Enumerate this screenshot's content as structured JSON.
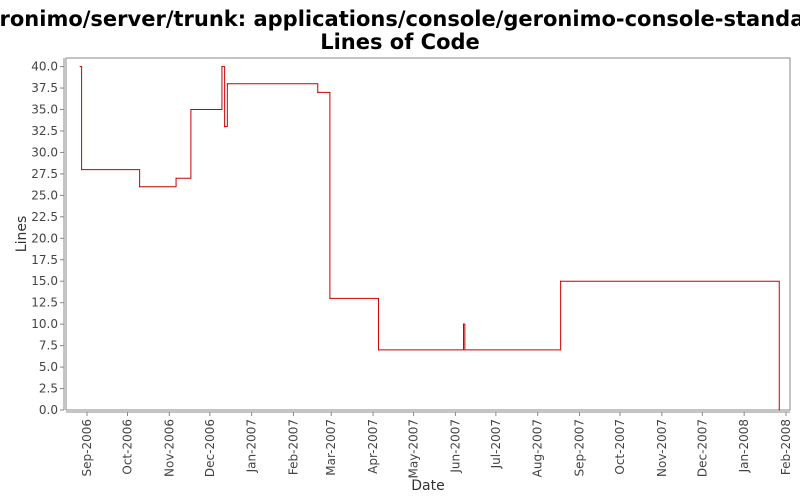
{
  "title_line1": "/geronimo/server/trunk: applications/console/geronimo-console-standard/",
  "title_line2": "Lines of Code",
  "chart_data": {
    "type": "line",
    "xlabel": "Date",
    "ylabel": "Lines",
    "ylim": [
      0,
      41
    ],
    "x_ticks": [
      "Sep-2006",
      "Oct-2006",
      "Nov-2006",
      "Dec-2006",
      "Jan-2007",
      "Feb-2007",
      "Mar-2007",
      "Apr-2007",
      "May-2007",
      "Jun-2007",
      "Jul-2007",
      "Aug-2007",
      "Sep-2007",
      "Oct-2007",
      "Nov-2007",
      "Dec-2007",
      "Jan-2008",
      "Feb-2008"
    ],
    "y_ticks": [
      "0.0",
      "2.5",
      "5.0",
      "7.5",
      "10.0",
      "12.5",
      "15.0",
      "17.5",
      "20.0",
      "22.5",
      "25.0",
      "27.5",
      "30.0",
      "32.5",
      "35.0",
      "37.5",
      "40.0"
    ],
    "grid": false,
    "series_color": "#cc0000",
    "series": [
      {
        "step": true,
        "points": [
          {
            "x": "2006-08-27",
            "y": 40
          },
          {
            "x": "2006-08-28",
            "y": 28
          },
          {
            "x": "2006-10-10",
            "y": 26
          },
          {
            "x": "2006-11-06",
            "y": 27
          },
          {
            "x": "2006-11-17",
            "y": 35
          },
          {
            "x": "2006-12-10",
            "y": 40
          },
          {
            "x": "2006-12-12",
            "y": 33
          },
          {
            "x": "2006-12-14",
            "y": 38
          },
          {
            "x": "2007-02-19",
            "y": 37
          },
          {
            "x": "2007-02-28",
            "y": 13
          },
          {
            "x": "2007-04-05",
            "y": 7
          },
          {
            "x": "2007-06-07",
            "y": 10
          },
          {
            "x": "2007-06-08",
            "y": 7
          },
          {
            "x": "2007-08-18",
            "y": 15
          },
          {
            "x": "2008-01-27",
            "y": 0
          }
        ]
      }
    ]
  }
}
